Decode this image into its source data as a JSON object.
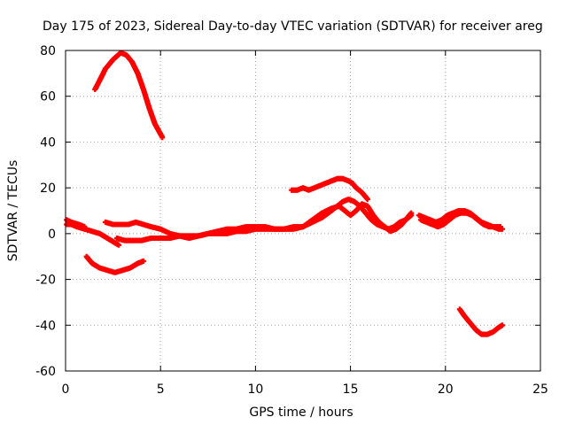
{
  "chart_data": {
    "type": "scatter",
    "title": "Day 175 of 2023, Sidereal Day-to-day VTEC variation (SDTVAR) for receiver areg",
    "xlabel": "GPS time / hours",
    "ylabel": "SDTVAR / TECUs",
    "xlim": [
      0,
      25
    ],
    "ylim": [
      -60,
      80
    ],
    "xticks": [
      0,
      5,
      10,
      15,
      20,
      25
    ],
    "yticks": [
      -60,
      -40,
      -20,
      0,
      20,
      40,
      60,
      80
    ],
    "grid": true,
    "legend": "none",
    "marker": "+",
    "color": "#ff0000",
    "series": [
      {
        "name": "track-1",
        "points": [
          [
            1.55,
            63
          ],
          [
            1.8,
            67
          ],
          [
            2.1,
            72
          ],
          [
            2.5,
            76
          ],
          [
            2.9,
            79
          ],
          [
            3.2,
            78
          ],
          [
            3.5,
            75
          ],
          [
            3.8,
            70
          ],
          [
            4.1,
            63
          ],
          [
            4.4,
            55
          ],
          [
            4.7,
            48
          ],
          [
            5.1,
            42
          ]
        ]
      },
      {
        "name": "track-2",
        "points": [
          [
            0.05,
            4
          ],
          [
            0.3,
            4
          ],
          [
            0.6,
            3
          ],
          [
            1.0,
            2
          ],
          [
            1.4,
            1
          ],
          [
            1.8,
            0
          ],
          [
            2.2,
            -2
          ],
          [
            2.6,
            -4
          ],
          [
            2.8,
            -5
          ]
        ]
      },
      {
        "name": "track-3",
        "points": [
          [
            0.05,
            6
          ],
          [
            0.3,
            5
          ],
          [
            0.7,
            4
          ],
          [
            1.0,
            3
          ]
        ]
      },
      {
        "name": "track-4",
        "points": [
          [
            1.1,
            -10
          ],
          [
            1.4,
            -13
          ],
          [
            1.8,
            -15
          ],
          [
            2.2,
            -16
          ],
          [
            2.6,
            -17
          ],
          [
            3.0,
            -16
          ],
          [
            3.4,
            -15
          ],
          [
            3.8,
            -13
          ],
          [
            4.1,
            -12
          ]
        ]
      },
      {
        "name": "track-5",
        "points": [
          [
            2.1,
            5
          ],
          [
            2.5,
            4
          ],
          [
            2.9,
            4
          ],
          [
            3.3,
            4
          ],
          [
            3.7,
            5
          ],
          [
            4.1,
            4
          ],
          [
            4.5,
            3
          ],
          [
            5.0,
            2
          ],
          [
            5.5,
            0
          ],
          [
            6.0,
            -1
          ],
          [
            6.5,
            -2
          ],
          [
            7.0,
            -1
          ],
          [
            7.5,
            0
          ],
          [
            8.0,
            1
          ],
          [
            8.5,
            2
          ],
          [
            9.0,
            2
          ],
          [
            9.5,
            3
          ],
          [
            10.0,
            3
          ],
          [
            10.5,
            3
          ],
          [
            11.0,
            2
          ],
          [
            11.5,
            2
          ],
          [
            12.0,
            2
          ],
          [
            12.5,
            3
          ],
          [
            13.0,
            5
          ],
          [
            13.5,
            7
          ],
          [
            14.0,
            10
          ],
          [
            14.3,
            12
          ],
          [
            14.6,
            14
          ],
          [
            14.9,
            15
          ],
          [
            15.2,
            14
          ],
          [
            15.5,
            12
          ],
          [
            15.8,
            9
          ],
          [
            16.1,
            6
          ],
          [
            16.4,
            4
          ],
          [
            16.7,
            3
          ],
          [
            17.0,
            2
          ],
          [
            17.3,
            3
          ],
          [
            17.6,
            5
          ],
          [
            17.9,
            6
          ],
          [
            18.2,
            8
          ]
        ]
      },
      {
        "name": "track-6",
        "points": [
          [
            2.7,
            -2
          ],
          [
            3.1,
            -3
          ],
          [
            3.5,
            -3
          ],
          [
            4.0,
            -3
          ],
          [
            4.5,
            -2
          ],
          [
            5.0,
            -2
          ],
          [
            5.5,
            -2
          ],
          [
            6.0,
            -1
          ],
          [
            6.5,
            -1
          ],
          [
            7.0,
            -1
          ],
          [
            7.5,
            0
          ],
          [
            8.0,
            0
          ],
          [
            8.5,
            0
          ],
          [
            9.0,
            1
          ],
          [
            9.5,
            1
          ],
          [
            10.0,
            2
          ],
          [
            10.5,
            2
          ],
          [
            11.0,
            2
          ],
          [
            11.5,
            2
          ],
          [
            12.0,
            3
          ],
          [
            12.5,
            3
          ],
          [
            13.0,
            6
          ],
          [
            13.5,
            9
          ],
          [
            14.0,
            11
          ],
          [
            14.4,
            12
          ],
          [
            14.7,
            10
          ],
          [
            15.0,
            8
          ],
          [
            15.3,
            10
          ],
          [
            15.6,
            13
          ],
          [
            15.9,
            12
          ],
          [
            16.2,
            8
          ],
          [
            16.5,
            5
          ],
          [
            16.8,
            3
          ],
          [
            17.1,
            1
          ],
          [
            17.4,
            2
          ],
          [
            17.7,
            4
          ],
          [
            18.0,
            7
          ],
          [
            18.2,
            9
          ]
        ]
      },
      {
        "name": "track-7",
        "points": [
          [
            11.9,
            19
          ],
          [
            12.2,
            19
          ],
          [
            12.5,
            20
          ],
          [
            12.8,
            19
          ],
          [
            13.1,
            20
          ],
          [
            13.4,
            21
          ],
          [
            13.7,
            22
          ],
          [
            14.0,
            23
          ],
          [
            14.3,
            24
          ],
          [
            14.6,
            24
          ],
          [
            14.9,
            23
          ],
          [
            15.1,
            22
          ],
          [
            15.3,
            20
          ],
          [
            15.6,
            18
          ],
          [
            15.9,
            15
          ]
        ]
      },
      {
        "name": "track-8",
        "points": [
          [
            18.6,
            8
          ],
          [
            18.9,
            7
          ],
          [
            19.2,
            6
          ],
          [
            19.5,
            5
          ],
          [
            19.8,
            6
          ],
          [
            20.1,
            8
          ],
          [
            20.4,
            9
          ],
          [
            20.7,
            10
          ],
          [
            21.0,
            10
          ],
          [
            21.3,
            9
          ],
          [
            21.6,
            7
          ],
          [
            21.9,
            5
          ],
          [
            22.2,
            4
          ],
          [
            22.5,
            3
          ],
          [
            22.8,
            2
          ],
          [
            23.0,
            2
          ]
        ]
      },
      {
        "name": "track-9",
        "points": [
          [
            18.7,
            6
          ],
          [
            19.0,
            5
          ],
          [
            19.3,
            4
          ],
          [
            19.6,
            3
          ],
          [
            19.9,
            4
          ],
          [
            20.2,
            6
          ],
          [
            20.5,
            8
          ],
          [
            20.8,
            9
          ],
          [
            21.1,
            9
          ],
          [
            21.4,
            8
          ],
          [
            21.7,
            6
          ],
          [
            22.0,
            4
          ],
          [
            22.3,
            3
          ],
          [
            22.6,
            3
          ],
          [
            22.9,
            3
          ]
        ]
      },
      {
        "name": "track-10",
        "points": [
          [
            20.75,
            -33
          ],
          [
            21.0,
            -36
          ],
          [
            21.3,
            -39
          ],
          [
            21.6,
            -42
          ],
          [
            21.9,
            -44
          ],
          [
            22.2,
            -44
          ],
          [
            22.5,
            -43
          ],
          [
            22.8,
            -41
          ],
          [
            23.0,
            -40
          ]
        ]
      }
    ]
  }
}
